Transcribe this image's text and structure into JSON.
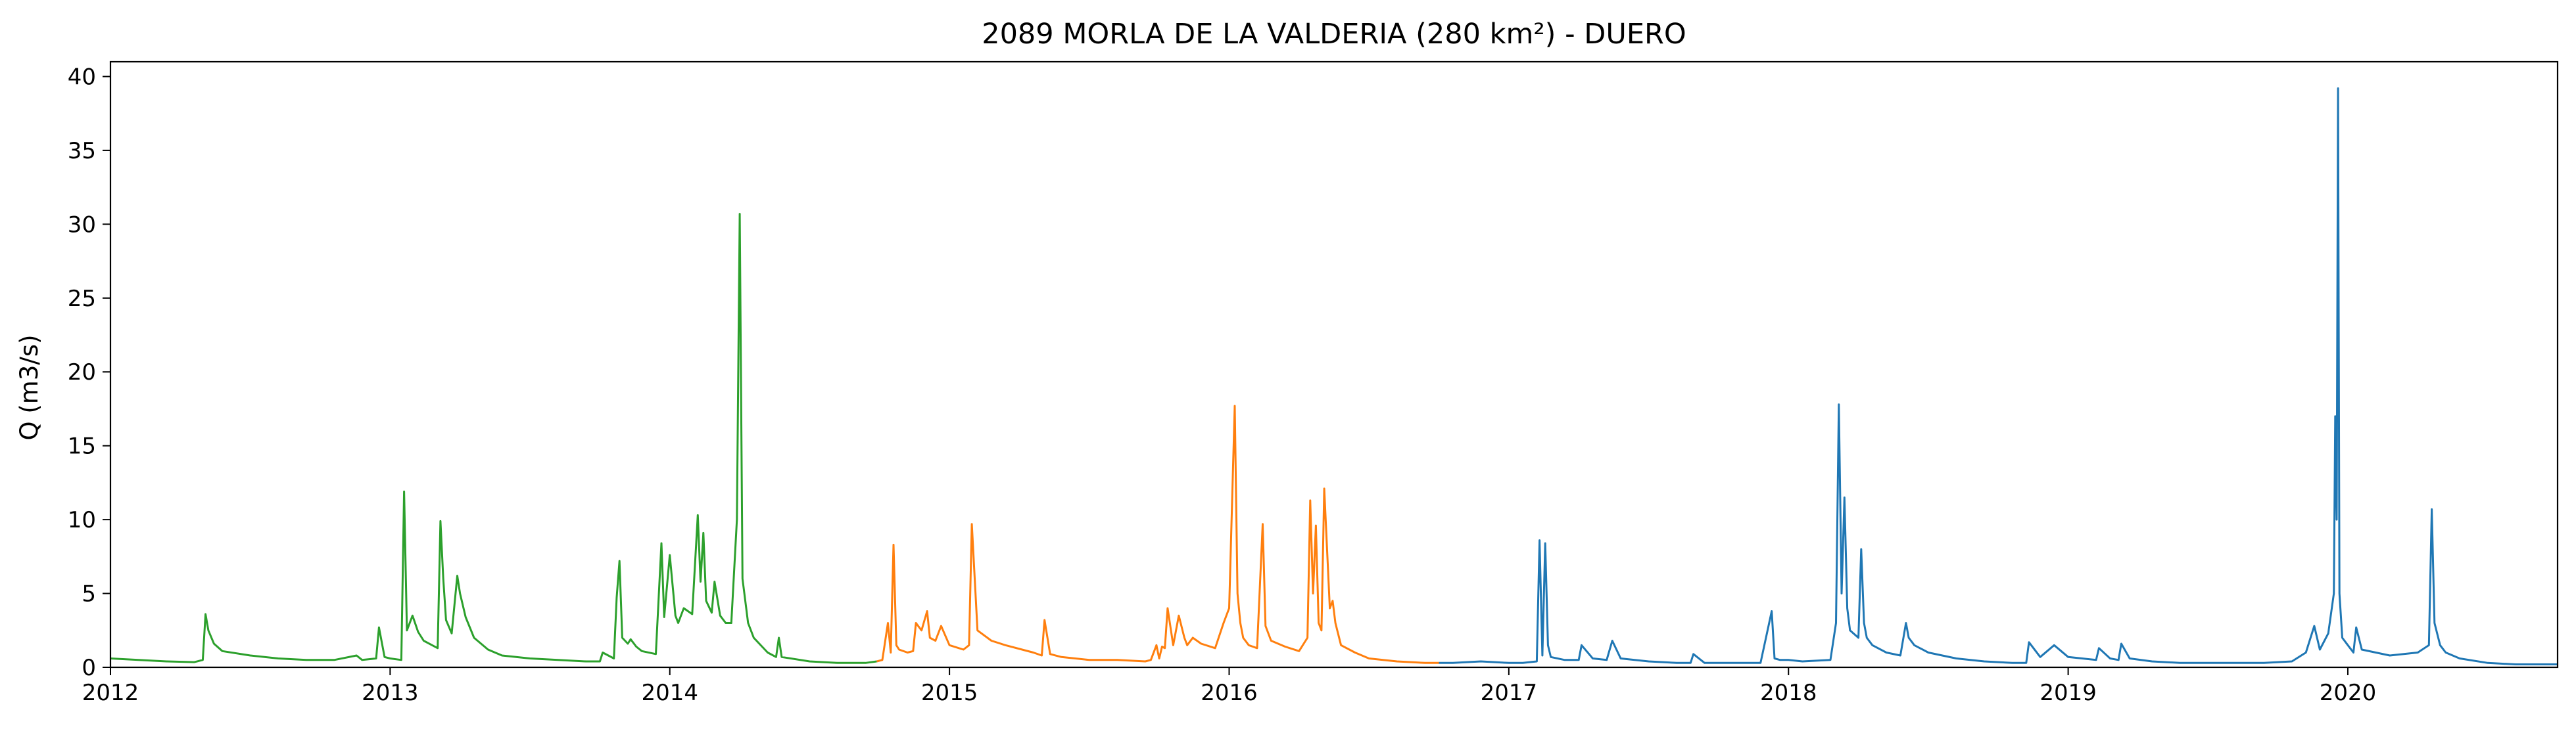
{
  "chart_data": {
    "type": "line",
    "title": "2089 MORLA DE LA VALDERIA (280 km²) - DUERO",
    "xlabel": "",
    "ylabel": "Q (m3/s)",
    "xlim": [
      2012.0,
      2020.75
    ],
    "ylim": [
      0,
      41
    ],
    "xticks": [
      2012,
      2013,
      2014,
      2015,
      2016,
      2017,
      2018,
      2019,
      2020
    ],
    "xtick_labels": [
      "2012",
      "2013",
      "2014",
      "2015",
      "2016",
      "2017",
      "2018",
      "2019",
      "2020"
    ],
    "yticks": [
      0,
      5,
      10,
      15,
      20,
      25,
      30,
      35,
      40
    ],
    "ytick_labels": [
      "0",
      "5",
      "10",
      "15",
      "20",
      "25",
      "30",
      "35",
      "40"
    ],
    "grid": false,
    "series": [
      {
        "color": "#2ca02c",
        "x": [
          2012.0,
          2012.1,
          2012.2,
          2012.3,
          2012.33,
          2012.34,
          2012.35,
          2012.37,
          2012.4,
          2012.5,
          2012.6,
          2012.7,
          2012.8,
          2012.88,
          2012.9,
          2012.95,
          2012.96,
          2012.98,
          2013.0,
          2013.04,
          2013.05,
          2013.06,
          2013.08,
          2013.1,
          2013.12,
          2013.15,
          2013.17,
          2013.18,
          2013.19,
          2013.2,
          2013.22,
          2013.24,
          2013.25,
          2013.27,
          2013.3,
          2013.35,
          2013.4,
          2013.5,
          2013.6,
          2013.7,
          2013.75,
          2013.76,
          2013.8,
          2013.81,
          2013.82,
          2013.83,
          2013.85,
          2013.86,
          2013.88,
          2013.9,
          2013.95,
          2013.97,
          2013.98,
          2014.0,
          2014.02,
          2014.03,
          2014.05,
          2014.08,
          2014.1,
          2014.11,
          2014.12,
          2014.13,
          2014.15,
          2014.16,
          2014.18,
          2014.2,
          2014.22,
          2014.24,
          2014.25,
          2014.26,
          2014.28,
          2014.3,
          2014.35,
          2014.38,
          2014.39,
          2014.4,
          2014.5,
          2014.6,
          2014.7,
          2014.74
        ],
        "y": [
          0.6,
          0.5,
          0.4,
          0.35,
          0.5,
          3.6,
          2.5,
          1.6,
          1.1,
          0.8,
          0.6,
          0.5,
          0.5,
          0.8,
          0.5,
          0.6,
          2.7,
          0.7,
          0.6,
          0.5,
          11.9,
          2.5,
          3.5,
          2.4,
          1.8,
          1.5,
          1.3,
          9.9,
          6.0,
          3.2,
          2.3,
          6.2,
          5.0,
          3.4,
          2.0,
          1.2,
          0.8,
          0.6,
          0.5,
          0.4,
          0.4,
          1.0,
          0.6,
          4.7,
          7.2,
          2.0,
          1.6,
          1.9,
          1.4,
          1.1,
          0.9,
          8.4,
          3.4,
          7.6,
          3.5,
          3.0,
          4.0,
          3.6,
          10.3,
          5.8,
          9.1,
          4.5,
          3.7,
          5.8,
          3.5,
          3.0,
          3.0,
          10.0,
          30.7,
          6.0,
          3.0,
          2.0,
          1.0,
          0.7,
          2.0,
          0.7,
          0.4,
          0.3,
          0.3,
          0.4
        ]
      },
      {
        "color": "#ff7f0e",
        "x": [
          2014.74,
          2014.76,
          2014.78,
          2014.79,
          2014.8,
          2014.81,
          2014.82,
          2014.85,
          2014.87,
          2014.88,
          2014.9,
          2014.92,
          2014.93,
          2014.95,
          2014.97,
          2015.0,
          2015.05,
          2015.07,
          2015.08,
          2015.1,
          2015.15,
          2015.2,
          2015.3,
          2015.33,
          2015.34,
          2015.36,
          2015.4,
          2015.5,
          2015.6,
          2015.7,
          2015.72,
          2015.74,
          2015.75,
          2015.76,
          2015.77,
          2015.78,
          2015.8,
          2015.82,
          2015.84,
          2015.85,
          2015.87,
          2015.9,
          2015.95,
          2015.98,
          2016.0,
          2016.02,
          2016.03,
          2016.04,
          2016.05,
          2016.07,
          2016.1,
          2016.12,
          2016.13,
          2016.15,
          2016.2,
          2016.25,
          2016.28,
          2016.29,
          2016.3,
          2016.31,
          2016.32,
          2016.33,
          2016.34,
          2016.36,
          2016.37,
          2016.38,
          2016.4,
          2016.45,
          2016.5,
          2016.6,
          2016.7,
          2016.75
        ],
        "y": [
          0.4,
          0.5,
          3.0,
          1.0,
          8.3,
          1.5,
          1.2,
          1.0,
          1.1,
          3.0,
          2.5,
          3.8,
          2.0,
          1.8,
          2.8,
          1.5,
          1.2,
          1.5,
          9.7,
          2.5,
          1.8,
          1.5,
          1.0,
          0.8,
          3.2,
          0.9,
          0.7,
          0.5,
          0.5,
          0.4,
          0.5,
          1.5,
          0.6,
          1.4,
          1.3,
          4.0,
          1.5,
          3.5,
          2.0,
          1.5,
          2.0,
          1.6,
          1.3,
          3.0,
          4.0,
          17.7,
          5.0,
          3.0,
          2.0,
          1.5,
          1.3,
          9.7,
          2.8,
          1.8,
          1.4,
          1.1,
          2.0,
          11.3,
          5.0,
          9.6,
          3.0,
          2.5,
          12.1,
          4.0,
          4.5,
          3.0,
          1.5,
          1.0,
          0.6,
          0.4,
          0.3,
          0.3
        ]
      },
      {
        "color": "#1f77b4",
        "x": [
          2016.75,
          2016.8,
          2016.9,
          2017.0,
          2017.05,
          2017.1,
          2017.11,
          2017.12,
          2017.13,
          2017.14,
          2017.15,
          2017.2,
          2017.25,
          2017.26,
          2017.3,
          2017.35,
          2017.37,
          2017.4,
          2017.5,
          2017.6,
          2017.65,
          2017.66,
          2017.7,
          2017.8,
          2017.9,
          2017.94,
          2017.95,
          2017.97,
          2018.0,
          2018.05,
          2018.15,
          2018.17,
          2018.18,
          2018.19,
          2018.2,
          2018.21,
          2018.22,
          2018.25,
          2018.26,
          2018.27,
          2018.28,
          2018.3,
          2018.35,
          2018.4,
          2018.42,
          2018.43,
          2018.45,
          2018.5,
          2018.6,
          2018.7,
          2018.8,
          2018.85,
          2018.86,
          2018.9,
          2018.95,
          2019.0,
          2019.05,
          2019.1,
          2019.11,
          2019.15,
          2019.18,
          2019.19,
          2019.22,
          2019.3,
          2019.4,
          2019.5,
          2019.6,
          2019.7,
          2019.8,
          2019.85,
          2019.88,
          2019.9,
          2019.93,
          2019.95,
          2019.955,
          2019.96,
          2019.965,
          2019.97,
          2019.98,
          2020.0,
          2020.02,
          2020.03,
          2020.05,
          2020.1,
          2020.15,
          2020.2,
          2020.25,
          2020.29,
          2020.3,
          2020.31,
          2020.33,
          2020.35,
          2020.4,
          2020.5,
          2020.6,
          2020.7,
          2020.75
        ],
        "y": [
          0.3,
          0.3,
          0.4,
          0.3,
          0.3,
          0.4,
          8.6,
          0.8,
          8.4,
          1.5,
          0.7,
          0.5,
          0.5,
          1.5,
          0.6,
          0.5,
          1.8,
          0.6,
          0.4,
          0.3,
          0.3,
          0.9,
          0.3,
          0.3,
          0.3,
          3.8,
          0.6,
          0.5,
          0.5,
          0.4,
          0.5,
          3.0,
          17.8,
          5.0,
          11.5,
          4.0,
          2.5,
          2.0,
          8.0,
          3.0,
          2.0,
          1.5,
          1.0,
          0.8,
          3.0,
          2.0,
          1.5,
          1.0,
          0.6,
          0.4,
          0.3,
          0.3,
          1.7,
          0.7,
          1.5,
          0.7,
          0.6,
          0.5,
          1.3,
          0.6,
          0.5,
          1.6,
          0.6,
          0.4,
          0.3,
          0.3,
          0.3,
          0.3,
          0.4,
          1.0,
          2.8,
          1.2,
          2.3,
          5.0,
          17.0,
          10.0,
          39.2,
          5.0,
          2.0,
          1.5,
          1.0,
          2.7,
          1.2,
          1.0,
          0.8,
          0.9,
          1.0,
          1.5,
          10.7,
          3.0,
          1.5,
          1.0,
          0.6,
          0.3,
          0.2,
          0.2,
          0.2
        ]
      }
    ]
  }
}
